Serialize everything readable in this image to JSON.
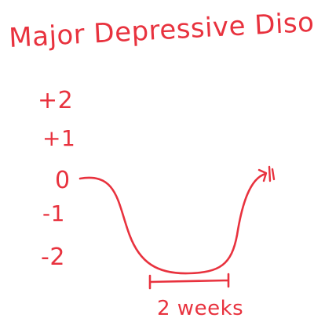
{
  "diagram": {
    "title": "Major Depressive Disorder",
    "y_levels": [
      {
        "label": "+2"
      },
      {
        "label": "+1"
      },
      {
        "label": "0"
      },
      {
        "label": "-1"
      },
      {
        "label": "-2"
      }
    ],
    "duration_label": "2 weeks",
    "ink_color": "#e8323e"
  }
}
